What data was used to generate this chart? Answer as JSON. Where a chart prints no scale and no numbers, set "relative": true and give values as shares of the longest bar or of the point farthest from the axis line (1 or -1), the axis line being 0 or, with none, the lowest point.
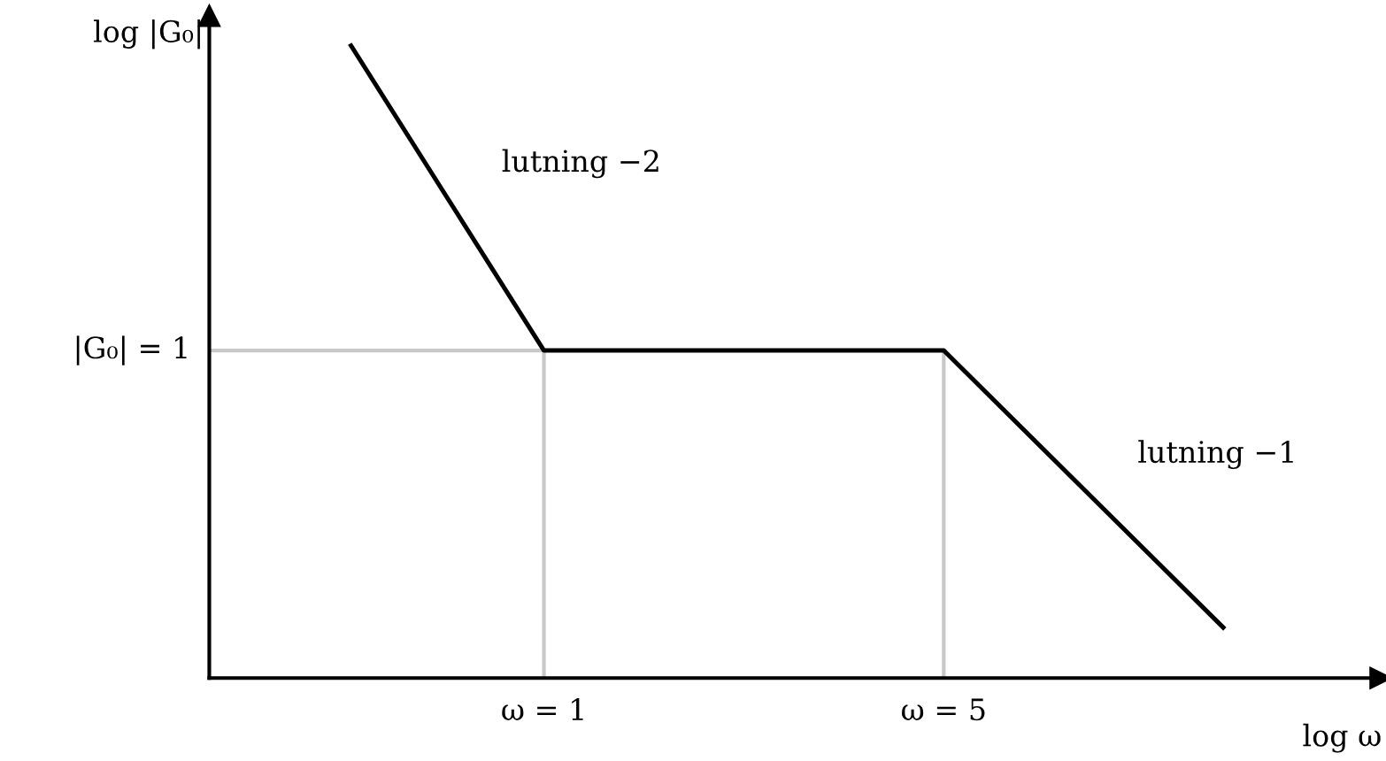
{
  "chart_data": {
    "type": "line",
    "relative": true,
    "xlabel": "log ω",
    "ylabel": "log |G₀|",
    "x": [
      0.46,
      1,
      5,
      15.4
    ],
    "log": "x",
    "series": [
      {
        "color": "#000000",
        "values": [
          1,
          0.518,
          0.518,
          0.08
        ]
      }
    ],
    "xlim": [
      0.26,
      29
    ],
    "xticks": [
      {
        "value": 1,
        "label": "ω = 1"
      },
      {
        "value": 5,
        "label": "ω = 5"
      }
    ],
    "ref_lines": [
      {
        "axis": "y",
        "value": 0.518,
        "label": "|G₀| = 1",
        "color": "#c8c8c8"
      },
      {
        "axis": "x",
        "value": 1,
        "label": null,
        "color": "#c8c8c8"
      },
      {
        "axis": "x",
        "value": 5,
        "label": null,
        "color": "#c8c8c8"
      }
    ],
    "annotations": [
      "lutning −2",
      "lutning −1"
    ],
    "grid": false,
    "legend": false,
    "marker": "none",
    "line_style": "solid"
  }
}
